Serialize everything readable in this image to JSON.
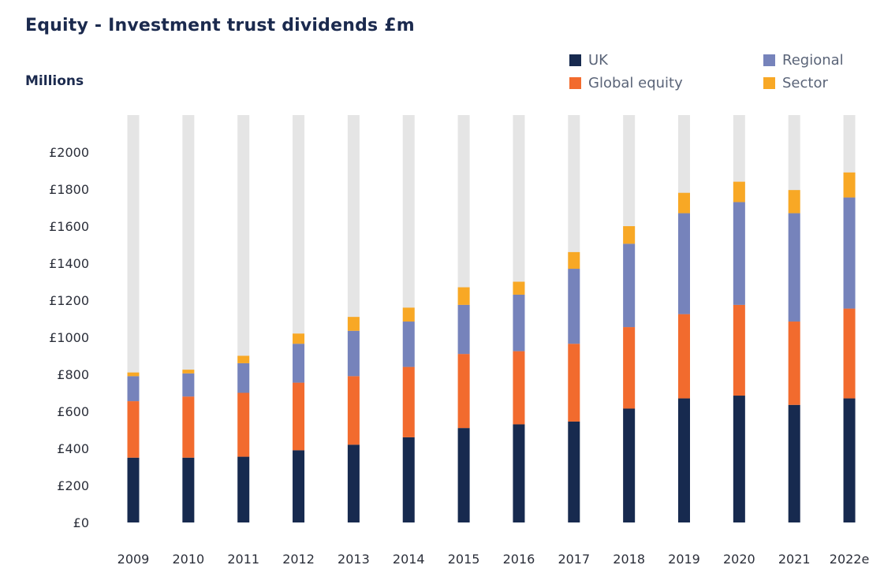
{
  "title": "Equity - Investment trust dividends £m",
  "chart_data": {
    "type": "bar",
    "stacked": true,
    "title": "Equity - Investment trust dividends £m",
    "ylabel": "Millions",
    "xlabel": "",
    "ylim": [
      0,
      2000
    ],
    "background_track_max": 2200,
    "y_ticks": [
      "£0",
      "£200",
      "£400",
      "£600",
      "£800",
      "£1000",
      "£1200",
      "£1400",
      "£1600",
      "£1800",
      "£2000"
    ],
    "y_tick_values": [
      0,
      200,
      400,
      600,
      800,
      1000,
      1200,
      1400,
      1600,
      1800,
      2000
    ],
    "categories": [
      "2009",
      "2010",
      "2011",
      "2012",
      "2013",
      "2014",
      "2015",
      "2016",
      "2017",
      "2018",
      "2019",
      "2020",
      "2021",
      "2022e"
    ],
    "series": [
      {
        "name": "UK",
        "color": "#172a4f",
        "values": [
          350,
          350,
          355,
          390,
          420,
          460,
          510,
          530,
          545,
          615,
          670,
          685,
          635,
          670
        ]
      },
      {
        "name": "Global equity",
        "color": "#f26b2e",
        "values": [
          305,
          330,
          345,
          365,
          370,
          380,
          400,
          395,
          420,
          440,
          455,
          490,
          450,
          485
        ]
      },
      {
        "name": "Regional",
        "color": "#7683bb",
        "values": [
          135,
          125,
          160,
          210,
          245,
          245,
          265,
          305,
          405,
          450,
          545,
          555,
          585,
          600
        ]
      },
      {
        "name": "Sector",
        "color": "#f8a825",
        "values": [
          20,
          20,
          40,
          55,
          75,
          75,
          95,
          70,
          90,
          95,
          110,
          110,
          125,
          135
        ]
      }
    ],
    "legend": {
      "position": "top-right",
      "entries": [
        "UK",
        "Regional",
        "Global equity",
        "Sector"
      ]
    },
    "grid": false
  }
}
